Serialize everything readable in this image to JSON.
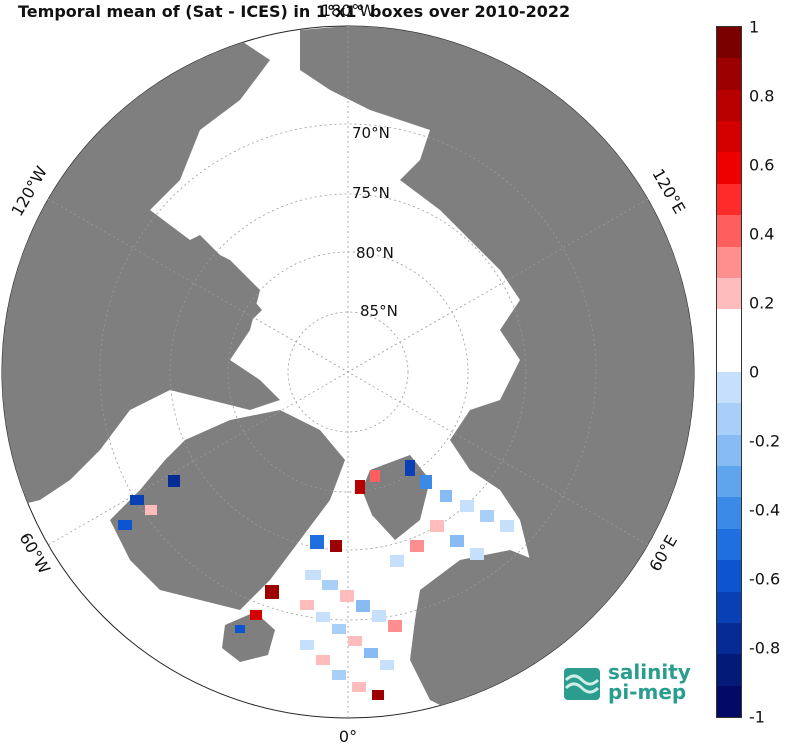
{
  "title": "Temporal mean of (Sat - ICES) in 1°x1° boxes over 2010-2022",
  "longitude_labels": {
    "top": "180°W",
    "left_upper": "120°W",
    "right_upper": "120°E",
    "left_lower": "60°W",
    "right_lower": "60°E",
    "bottom": "0°"
  },
  "latitude_labels": [
    "70°N",
    "75°N",
    "80°N",
    "85°N"
  ],
  "colorbar": {
    "ticks": [
      "1",
      "0.8",
      "0.6",
      "0.4",
      "0.2",
      "0",
      "-0.2",
      "-0.4",
      "-0.6",
      "-0.8",
      "-1"
    ],
    "colors": [
      "#7a0000",
      "#9c0000",
      "#b80000",
      "#d40000",
      "#ee0000",
      "#ff2a2a",
      "#ff5e5e",
      "#ff8f8f",
      "#ffbcbc",
      "#ffffff",
      "#ffffff",
      "#c6e0fb",
      "#a7cff7",
      "#86bbf3",
      "#5fa5ee",
      "#3b8ae8",
      "#1f6fe0",
      "#0d55d0",
      "#0a40b5",
      "#072b95",
      "#041a78",
      "#020a66"
    ]
  },
  "logo": {
    "line1": "salinity",
    "line2": "pi-mep",
    "color": "#2a9d8f"
  },
  "colors": {
    "land": "#7f7f7f",
    "ocean": "#ffffff",
    "grid": "#9a9a9a"
  }
}
